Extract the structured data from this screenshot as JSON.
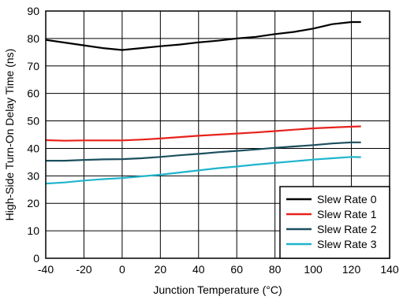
{
  "chart_data": {
    "type": "line",
    "xlabel": "Junction Temperature (°C)",
    "ylabel": "High-Side Turn-On Delay Time (ns)",
    "xlim": [
      -40,
      140
    ],
    "ylim": [
      0,
      90
    ],
    "xticks": [
      -40,
      -20,
      0,
      20,
      40,
      60,
      80,
      100,
      120,
      140
    ],
    "yticks": [
      0,
      10,
      20,
      30,
      40,
      50,
      60,
      70,
      80,
      90
    ],
    "grid": true,
    "legend_position": "bottom-right",
    "series": [
      {
        "name": "Slew Rate 0",
        "color": "#000000",
        "x": [
          -40,
          -30,
          -20,
          -10,
          0,
          10,
          20,
          30,
          40,
          50,
          60,
          70,
          80,
          90,
          100,
          110,
          120,
          125
        ],
        "y": [
          79.5,
          78.5,
          77.5,
          76.5,
          75.8,
          76.5,
          77.2,
          77.8,
          78.6,
          79.2,
          80.0,
          80.6,
          81.6,
          82.4,
          83.6,
          85.2,
          86.0,
          86.0
        ]
      },
      {
        "name": "Slew Rate 1",
        "color": "#e8221b",
        "x": [
          -40,
          -30,
          -20,
          -10,
          0,
          10,
          20,
          30,
          40,
          50,
          60,
          70,
          80,
          90,
          100,
          110,
          120,
          125
        ],
        "y": [
          43.0,
          42.8,
          42.9,
          42.9,
          42.9,
          43.2,
          43.6,
          44.1,
          44.6,
          45.0,
          45.4,
          45.8,
          46.3,
          46.8,
          47.3,
          47.6,
          47.9,
          48.0
        ]
      },
      {
        "name": "Slew Rate 2",
        "color": "#1b4f5e",
        "x": [
          -40,
          -30,
          -20,
          -10,
          0,
          10,
          20,
          30,
          40,
          50,
          60,
          70,
          80,
          90,
          100,
          110,
          120,
          125
        ],
        "y": [
          35.5,
          35.5,
          35.8,
          36.0,
          36.1,
          36.4,
          36.9,
          37.5,
          38.0,
          38.6,
          39.1,
          39.6,
          40.2,
          40.7,
          41.2,
          41.8,
          42.2,
          42.2
        ]
      },
      {
        "name": "Slew Rate 3",
        "color": "#1fb4cc",
        "x": [
          -40,
          -30,
          -20,
          -10,
          0,
          10,
          20,
          30,
          40,
          50,
          60,
          70,
          80,
          90,
          100,
          110,
          120,
          125
        ],
        "y": [
          27.2,
          27.6,
          28.3,
          28.8,
          29.2,
          29.8,
          30.4,
          31.2,
          32.0,
          32.8,
          33.4,
          34.1,
          34.7,
          35.3,
          35.9,
          36.4,
          36.9,
          36.8
        ]
      }
    ]
  }
}
